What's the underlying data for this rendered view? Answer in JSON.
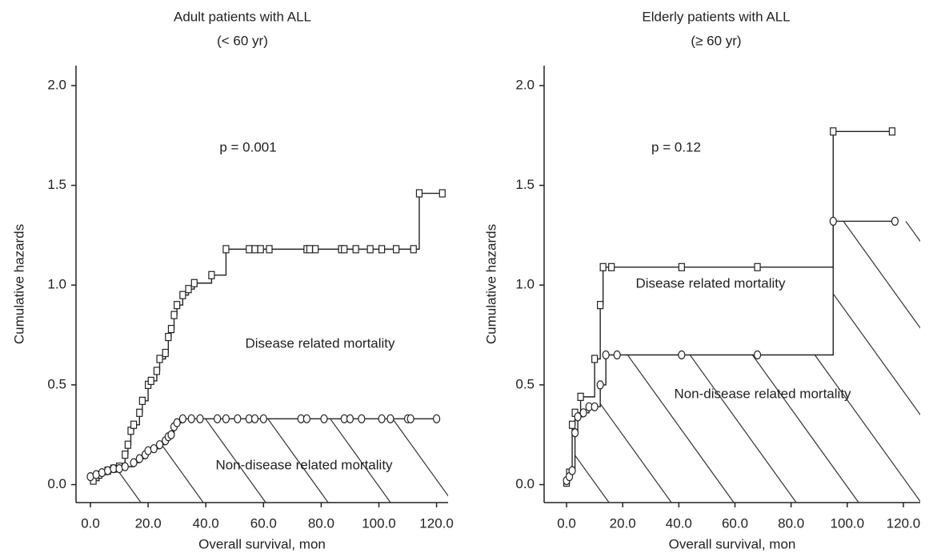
{
  "chart_data": [
    {
      "type": "step",
      "title": "Adult patients with ALL",
      "subtitle": "(< 60 yr)",
      "annotation": "p = 0.001",
      "xlabel": "Overall survival, mon",
      "ylabel": "Cumulative hazards",
      "xlim": [
        -5,
        124
      ],
      "ylim": [
        -0.09,
        2.1
      ],
      "xticks": [
        {
          "value": 0,
          "label": "0.0"
        },
        {
          "value": 20,
          "label": "20.0"
        },
        {
          "value": 40,
          "label": "40.0"
        },
        {
          "value": 60,
          "label": "60.0"
        },
        {
          "value": 80,
          "label": "80.0"
        },
        {
          "value": 100,
          "label": "100.0"
        },
        {
          "value": 120,
          "label": "120.0"
        }
      ],
      "yticks": [
        {
          "value": 0,
          "label": "0.0"
        },
        {
          "value": 0.5,
          "label": "0.5"
        },
        {
          "value": 1,
          "label": "1.0"
        },
        {
          "value": 1.5,
          "label": "1.5"
        },
        {
          "value": 2,
          "label": "2.0"
        }
      ],
      "hatched": true,
      "series": [
        {
          "name": "Disease related mortality",
          "marker": "square",
          "color": "#222",
          "x": [
            1,
            3,
            6,
            8,
            10,
            12,
            13,
            14,
            15,
            17,
            18,
            20,
            21,
            23,
            24,
            26,
            27,
            28,
            29,
            30,
            32,
            34,
            36,
            42,
            47,
            55,
            57,
            59,
            62,
            75,
            76,
            78,
            87,
            88,
            92,
            97,
            101,
            106,
            112,
            114,
            122
          ],
          "values": [
            0.02,
            0.05,
            0.07,
            0.08,
            0.09,
            0.15,
            0.2,
            0.27,
            0.3,
            0.36,
            0.42,
            0.5,
            0.52,
            0.57,
            0.63,
            0.66,
            0.74,
            0.78,
            0.85,
            0.9,
            0.95,
            0.98,
            1.01,
            1.05,
            1.18,
            1.18,
            1.18,
            1.18,
            1.18,
            1.18,
            1.18,
            1.18,
            1.18,
            1.18,
            1.18,
            1.18,
            1.18,
            1.18,
            1.18,
            1.46,
            1.46
          ]
        },
        {
          "name": "Non-disease related mortality",
          "marker": "circle",
          "color": "#222",
          "x": [
            0,
            2,
            4,
            6,
            8,
            10,
            12,
            15,
            17,
            19,
            20,
            22,
            24,
            26,
            27,
            28,
            29,
            30,
            32,
            35,
            38,
            44,
            47,
            51,
            55,
            57,
            60,
            73,
            75,
            81,
            88,
            90,
            94,
            101,
            104,
            110,
            111,
            120
          ],
          "values": [
            0.04,
            0.05,
            0.06,
            0.07,
            0.08,
            0.08,
            0.09,
            0.11,
            0.13,
            0.15,
            0.17,
            0.18,
            0.2,
            0.22,
            0.24,
            0.25,
            0.29,
            0.31,
            0.33,
            0.33,
            0.33,
            0.33,
            0.33,
            0.33,
            0.33,
            0.33,
            0.33,
            0.33,
            0.33,
            0.33,
            0.33,
            0.33,
            0.33,
            0.33,
            0.33,
            0.33,
            0.33,
            0.33
          ]
        }
      ]
    },
    {
      "type": "step",
      "title": "Elderly patients with ALL",
      "subtitle": "(≥ 60 yr)",
      "annotation": "p = 0.12",
      "xlabel": "Overall survival, mon",
      "ylabel": "Cumulative hazards",
      "xlim": [
        -8,
        126
      ],
      "ylim": [
        -0.09,
        2.1
      ],
      "xticks": [
        {
          "value": 0,
          "label": "0.0"
        },
        {
          "value": 20,
          "label": "20.0"
        },
        {
          "value": 40,
          "label": "40.0"
        },
        {
          "value": 60,
          "label": "60.0"
        },
        {
          "value": 80,
          "label": "80.0"
        },
        {
          "value": 100,
          "label": "100.0"
        },
        {
          "value": 120,
          "label": "120.0"
        }
      ],
      "yticks": [
        {
          "value": 0,
          "label": "0.0"
        },
        {
          "value": 0.5,
          "label": "0.5"
        },
        {
          "value": 1,
          "label": "1.0"
        },
        {
          "value": 1.5,
          "label": "1.5"
        },
        {
          "value": 2,
          "label": "2.0"
        }
      ],
      "hatched": true,
      "series": [
        {
          "name": "Disease related mortality",
          "marker": "square",
          "color": "#222",
          "x": [
            0,
            1,
            2,
            3,
            5,
            10,
            12,
            13,
            16,
            41,
            68,
            95,
            116
          ],
          "values": [
            0.01,
            0.06,
            0.3,
            0.36,
            0.44,
            0.63,
            0.9,
            1.09,
            1.09,
            1.09,
            1.09,
            1.77,
            1.77
          ]
        },
        {
          "name": "Non-disease related mortality",
          "marker": "circle",
          "color": "#222",
          "x": [
            0,
            1,
            2,
            3,
            4,
            6,
            8,
            10,
            12,
            14,
            18,
            41,
            68,
            95,
            117
          ],
          "values": [
            0.02,
            0.04,
            0.07,
            0.26,
            0.34,
            0.36,
            0.39,
            0.39,
            0.5,
            0.65,
            0.65,
            0.65,
            0.65,
            1.32,
            1.32
          ]
        }
      ]
    }
  ]
}
